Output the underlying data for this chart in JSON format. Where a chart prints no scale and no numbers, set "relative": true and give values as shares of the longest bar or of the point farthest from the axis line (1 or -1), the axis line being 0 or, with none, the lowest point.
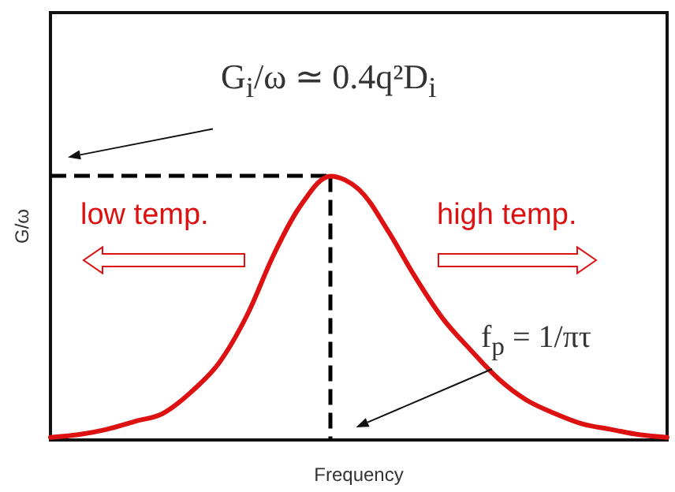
{
  "chart_data": {
    "type": "line",
    "relative": true,
    "xlabel": "Frequency",
    "ylabel": "G/ω",
    "categories": [
      null,
      null,
      null,
      null,
      null,
      null,
      null,
      null,
      null,
      null,
      null,
      null,
      null,
      null,
      null,
      null,
      null,
      null,
      null,
      null,
      null,
      null,
      null
    ],
    "series": [
      {
        "color": "#dd1111",
        "values": [
          0.01,
          0.02,
          0.04,
          0.07,
          0.1,
          0.18,
          0.29,
          0.47,
          0.71,
          0.9,
          1.0,
          0.95,
          0.8,
          0.62,
          0.46,
          0.34,
          0.23,
          0.15,
          0.1,
          0.06,
          0.04,
          0.02,
          0.01
        ]
      }
    ],
    "ref_lines": [
      {
        "axis": "y",
        "value": 1,
        "color": "#000000",
        "line_style": "dashed"
      }
    ],
    "annotations": [
      {
        "text": "G$_{i}$/ω ≃ 0.4q²D$_{i}$",
        "y": 1
      },
      {
        "text": "f$_{p}$ = 1/πτ"
      },
      "low temp.",
      "high temp."
    ],
    "grid": false,
    "marker": "none",
    "line_style": "solid"
  }
}
